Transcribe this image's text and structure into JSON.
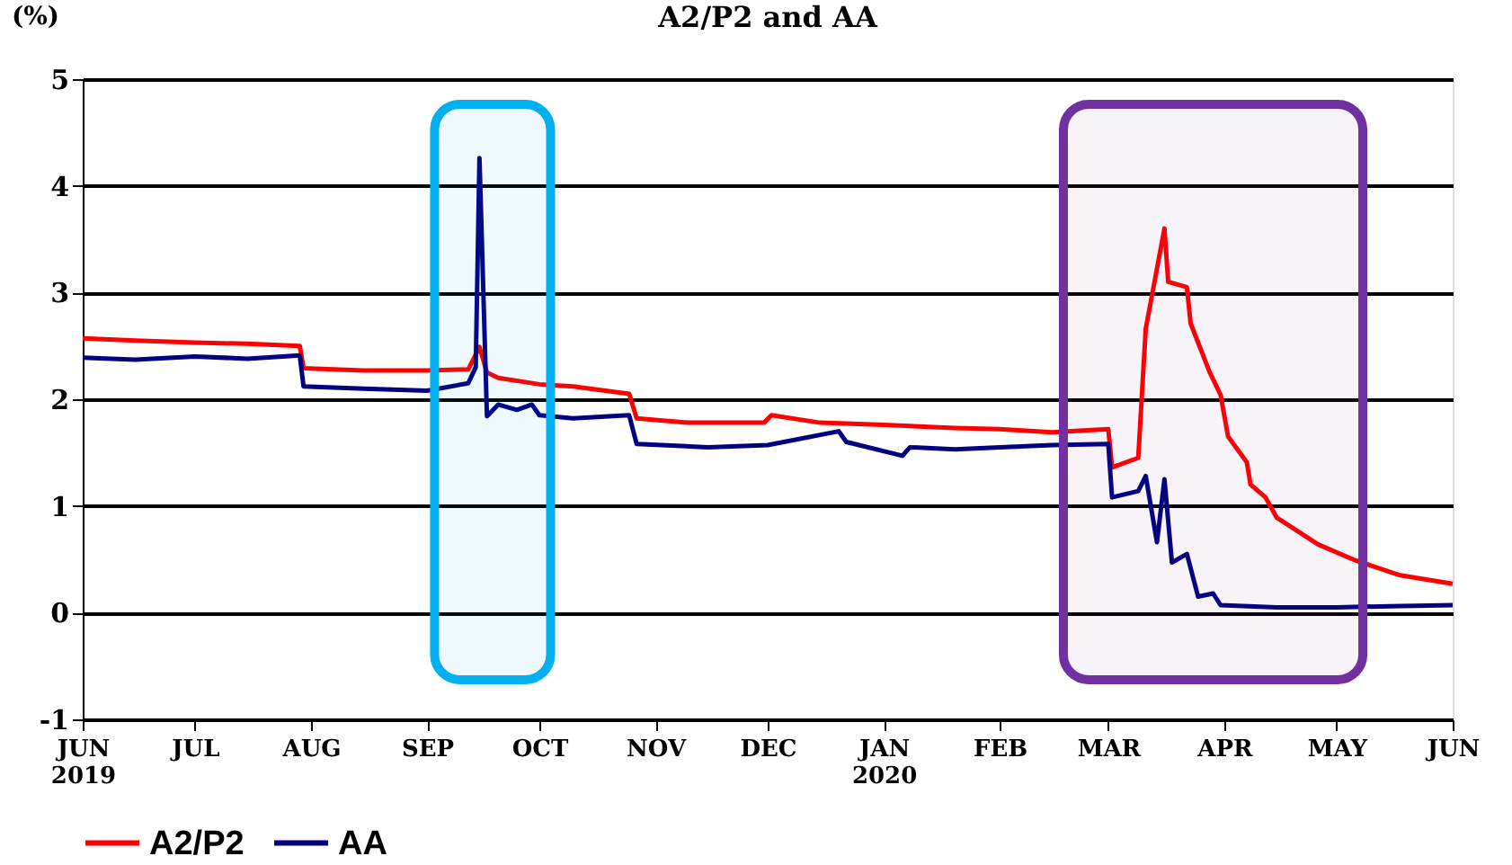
{
  "chart_data": {
    "type": "line",
    "title": "A2/P2 and AA",
    "ylabel": "(%)",
    "xlim": [
      "2019-06-01",
      "2020-06-01"
    ],
    "xticks": [
      {
        "value": "2019-06-01",
        "label": "JUN\n2019"
      },
      {
        "value": "2019-07-01",
        "label": "JUL"
      },
      {
        "value": "2019-08-01",
        "label": "AUG"
      },
      {
        "value": "2019-09-01",
        "label": "SEP"
      },
      {
        "value": "2019-10-01",
        "label": "OCT"
      },
      {
        "value": "2019-11-01",
        "label": "NOV"
      },
      {
        "value": "2019-12-01",
        "label": "DEC"
      },
      {
        "value": "2020-01-01",
        "label": "JAN\n2020"
      },
      {
        "value": "2020-02-01",
        "label": "FEB"
      },
      {
        "value": "2020-03-01",
        "label": "MAR"
      },
      {
        "value": "2020-04-01",
        "label": "APR"
      },
      {
        "value": "2020-05-01",
        "label": "MAY"
      },
      {
        "value": "2020-06-01",
        "label": "JUN"
      }
    ],
    "ylim": [
      -1,
      5
    ],
    "yticks": [
      -1,
      0,
      1,
      2,
      3,
      4,
      5
    ],
    "grid": "y",
    "legend": "bottom left",
    "line_style": "solid",
    "marker": "none",
    "series": [
      {
        "name": "A2/P2",
        "color": "#ff0000",
        "x": [
          "2019-06-01",
          "2019-06-15",
          "2019-07-01",
          "2019-07-15",
          "2019-07-29",
          "2019-07-30",
          "2019-08-15",
          "2019-09-01",
          "2019-09-12",
          "2019-09-15",
          "2019-09-17",
          "2019-09-20",
          "2019-10-01",
          "2019-10-10",
          "2019-10-25",
          "2019-10-27",
          "2019-11-10",
          "2019-11-30",
          "2019-12-02",
          "2019-12-15",
          "2020-01-01",
          "2020-01-20",
          "2020-02-01",
          "2020-02-15",
          "2020-03-01",
          "2020-03-02",
          "2020-03-09",
          "2020-03-11",
          "2020-03-16",
          "2020-03-17",
          "2020-03-22",
          "2020-03-23",
          "2020-03-28",
          "2020-03-31",
          "2020-04-02",
          "2020-04-07",
          "2020-04-08",
          "2020-04-12",
          "2020-04-15",
          "2020-04-26",
          "2020-05-06",
          "2020-05-18",
          "2020-06-01"
        ],
        "values": [
          2.57,
          2.55,
          2.53,
          2.52,
          2.5,
          2.29,
          2.27,
          2.27,
          2.28,
          2.49,
          2.25,
          2.2,
          2.14,
          2.12,
          2.05,
          1.82,
          1.78,
          1.78,
          1.85,
          1.78,
          1.76,
          1.73,
          1.72,
          1.69,
          1.72,
          1.36,
          1.45,
          2.66,
          3.6,
          3.1,
          3.05,
          2.71,
          2.26,
          2.04,
          1.65,
          1.41,
          1.2,
          1.08,
          0.89,
          0.64,
          0.49,
          0.35,
          0.27
        ]
      },
      {
        "name": "AA",
        "color": "#000080",
        "x": [
          "2019-06-01",
          "2019-06-15",
          "2019-07-01",
          "2019-07-15",
          "2019-07-29",
          "2019-07-30",
          "2019-08-15",
          "2019-09-01",
          "2019-09-12",
          "2019-09-14",
          "2019-09-15",
          "2019-09-17",
          "2019-09-20",
          "2019-09-25",
          "2019-09-29",
          "2019-10-01",
          "2019-10-10",
          "2019-10-25",
          "2019-10-27",
          "2019-11-15",
          "2019-12-01",
          "2019-12-20",
          "2019-12-22",
          "2020-01-06",
          "2020-01-08",
          "2020-01-20",
          "2020-02-01",
          "2020-02-15",
          "2020-03-01",
          "2020-03-02",
          "2020-03-09",
          "2020-03-11",
          "2020-03-14",
          "2020-03-16",
          "2020-03-18",
          "2020-03-22",
          "2020-03-25",
          "2020-03-29",
          "2020-03-31",
          "2020-04-15",
          "2020-05-01",
          "2020-05-15",
          "2020-06-01"
        ],
        "values": [
          2.39,
          2.37,
          2.4,
          2.38,
          2.41,
          2.12,
          2.1,
          2.08,
          2.15,
          2.3,
          4.26,
          1.84,
          1.95,
          1.9,
          1.95,
          1.85,
          1.82,
          1.85,
          1.58,
          1.55,
          1.57,
          1.7,
          1.6,
          1.47,
          1.55,
          1.53,
          1.55,
          1.57,
          1.58,
          1.08,
          1.14,
          1.28,
          0.66,
          1.25,
          0.47,
          0.55,
          0.15,
          0.18,
          0.07,
          0.05,
          0.05,
          0.06,
          0.07
        ]
      }
    ],
    "bands": [
      {
        "axis": "x",
        "from": "2019-09-03",
        "to": "2019-10-04",
        "color": "#00b0f0"
      },
      {
        "axis": "x",
        "from": "2020-02-18",
        "to": "2020-05-08",
        "color": "#7030a0"
      }
    ]
  }
}
